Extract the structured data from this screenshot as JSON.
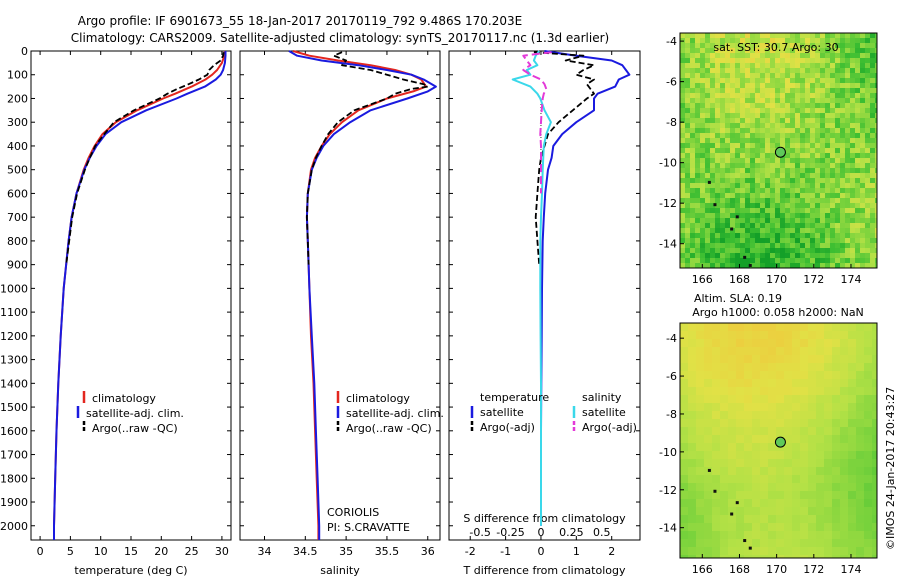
{
  "title": {
    "line1": "Argo profile: IF 6901673_55 18-Jan-2017 20170119_792 9.486S 170.203E",
    "line2": "Climatology: CARS2009. Satellite-adjusted climatology: synTS_20170117.nc (1.3d earlier)"
  },
  "colors": {
    "climatology": "#e3261f",
    "satellite": "#1a1adf",
    "argo": "#000000",
    "cyan": "#3ad8ea",
    "magenta": "#e33ad8",
    "circle": "#5fc95a"
  },
  "icons": {
    "map_marker": "circle-marker-icon"
  },
  "depth_ticks": [
    0,
    100,
    200,
    300,
    400,
    500,
    600,
    700,
    800,
    900,
    1000,
    1100,
    1200,
    1300,
    1400,
    1500,
    1600,
    1700,
    1800,
    1900,
    2000
  ],
  "chart_data": [
    {
      "type": "line",
      "panel": "temperature",
      "xlabel": "temperature (deg C)",
      "ylabel": "",
      "xlim": [
        -1.5,
        31.5
      ],
      "ylim": [
        2060,
        0
      ],
      "xticks": [
        0,
        5,
        10,
        15,
        20,
        25,
        30
      ],
      "legend": {
        "placement": "lower-left",
        "entries": [
          "climatology",
          "satellite-adj. clim.",
          "Argo(..raw -QC)"
        ]
      },
      "series": [
        {
          "name": "climatology",
          "color": "#e3261f",
          "depth": [
            0,
            20,
            50,
            80,
            100,
            120,
            150,
            180,
            200,
            250,
            300,
            350,
            400,
            450,
            500,
            600,
            700,
            800,
            1000,
            1200,
            1400,
            1600,
            1800,
            2000,
            2060
          ],
          "values": [
            30.5,
            30.4,
            30.0,
            29.2,
            28.4,
            27.3,
            25.0,
            22.3,
            20.3,
            16.0,
            12.5,
            10.3,
            9.0,
            8.0,
            7.2,
            6.0,
            5.2,
            4.7,
            3.9,
            3.4,
            3.0,
            2.7,
            2.5,
            2.3,
            2.3
          ]
        },
        {
          "name": "satellite-adj. clim.",
          "color": "#1a1adf",
          "depth": [
            0,
            20,
            50,
            80,
            100,
            120,
            150,
            180,
            200,
            250,
            300,
            350,
            400,
            450,
            500,
            600,
            700,
            800,
            1000,
            1200,
            1400,
            1600,
            1800,
            2000,
            2060
          ],
          "values": [
            30.6,
            30.6,
            30.5,
            30.2,
            29.8,
            29.0,
            27.2,
            24.3,
            22.5,
            17.5,
            13.4,
            10.8,
            9.3,
            8.2,
            7.3,
            6.0,
            5.2,
            4.7,
            3.9,
            3.4,
            3.0,
            2.7,
            2.5,
            2.3,
            2.3
          ]
        },
        {
          "name": "Argo(..raw -QC)",
          "color": "#000000",
          "depth": [
            5,
            20,
            40,
            60,
            80,
            100,
            120,
            140,
            160,
            180,
            200,
            250,
            300,
            350,
            400,
            450,
            500,
            600,
            700,
            800,
            900
          ],
          "values": [
            30.3,
            30.2,
            29.8,
            28.7,
            27.9,
            27.6,
            26.2,
            24.5,
            22.6,
            21.0,
            19.7,
            15.5,
            12.2,
            10.6,
            9.1,
            8.2,
            7.4,
            6.1,
            5.3,
            4.8,
            4.3
          ]
        }
      ]
    },
    {
      "type": "line",
      "panel": "salinity",
      "xlabel": "salinity",
      "ylabel": "",
      "xlim": [
        33.7,
        36.15
      ],
      "ylim": [
        2060,
        0
      ],
      "xticks": [
        34,
        34.5,
        35,
        35.5,
        36
      ],
      "legend": {
        "placement": "lower-right",
        "entries": [
          "climatology",
          "satellite-adj. clim.",
          "Argo(..raw -QC)"
        ]
      },
      "series": [
        {
          "name": "climatology",
          "color": "#e3261f",
          "depth": [
            0,
            20,
            40,
            60,
            80,
            100,
            120,
            150,
            170,
            200,
            250,
            300,
            350,
            400,
            450,
            500,
            600,
            700,
            800,
            1000,
            1200,
            1400,
            1600,
            1800,
            2000,
            2060
          ],
          "values": [
            34.35,
            34.55,
            34.9,
            35.3,
            35.6,
            35.8,
            35.92,
            35.98,
            35.82,
            35.5,
            35.15,
            34.95,
            34.8,
            34.7,
            34.62,
            34.57,
            34.53,
            34.52,
            34.53,
            34.55,
            34.57,
            34.6,
            34.62,
            34.64,
            34.66,
            34.66
          ]
        },
        {
          "name": "satellite-adj. clim.",
          "color": "#1a1adf",
          "depth": [
            0,
            20,
            40,
            60,
            80,
            100,
            120,
            150,
            170,
            200,
            250,
            300,
            350,
            400,
            450,
            500,
            600,
            700,
            800,
            1000,
            1200,
            1400,
            1600,
            1800,
            2000,
            2060
          ],
          "values": [
            34.3,
            34.4,
            34.7,
            35.15,
            35.5,
            35.8,
            35.95,
            36.1,
            36.0,
            35.75,
            35.3,
            35.05,
            34.85,
            34.72,
            34.64,
            34.58,
            34.53,
            34.52,
            34.53,
            34.55,
            34.58,
            34.61,
            34.63,
            34.65,
            34.67,
            34.67
          ]
        },
        {
          "name": "Argo(..raw -QC)",
          "color": "#000000",
          "depth": [
            5,
            20,
            40,
            60,
            80,
            100,
            120,
            140,
            150,
            160,
            180,
            200,
            250,
            300,
            350,
            400,
            450,
            500,
            600,
            700,
            800,
            900
          ],
          "values": [
            34.95,
            34.85,
            35.0,
            34.95,
            35.3,
            35.5,
            35.7,
            35.95,
            36.0,
            35.8,
            35.6,
            35.5,
            35.1,
            34.9,
            34.78,
            34.7,
            34.63,
            34.58,
            34.53,
            34.52,
            34.53,
            34.54
          ]
        }
      ]
    },
    {
      "type": "line",
      "panel": "difference",
      "xlabel": "T difference from climatology",
      "xlabel_top": "S difference from climatology",
      "xlim": [
        -2.6,
        2.8
      ],
      "ylim": [
        2060,
        0
      ],
      "xticks": [
        -2,
        -1,
        0,
        1,
        2
      ],
      "xticks_top": [
        -0.5,
        -0.25,
        0,
        0.25,
        0.5
      ],
      "legend": {
        "placement": "lower",
        "entries": [
          "temperature",
          "satellite",
          "Argo(-adj)",
          "salinity",
          "satellite",
          "Argo(-adj)"
        ]
      },
      "series": [
        {
          "name": "temperature satellite",
          "color": "#1a1adf",
          "depth": [
            0,
            20,
            40,
            60,
            80,
            100,
            120,
            150,
            180,
            200,
            250,
            300,
            350,
            400,
            450,
            500,
            600,
            700,
            800,
            1000,
            1200,
            1400,
            1600,
            1800,
            2000
          ],
          "values": [
            0.1,
            1.0,
            2.0,
            2.3,
            2.4,
            2.5,
            2.2,
            2.1,
            1.6,
            1.5,
            1.5,
            1.0,
            0.6,
            0.35,
            0.3,
            0.2,
            0.12,
            0.08,
            0.05,
            0.03,
            0.02,
            0.01,
            0.0,
            0.0,
            0.0
          ]
        },
        {
          "name": "temperature Argo(-adj)",
          "color": "#000000",
          "depth": [
            5,
            20,
            40,
            60,
            80,
            100,
            120,
            140,
            160,
            180,
            200,
            250,
            300,
            350,
            400,
            450,
            500,
            600,
            700,
            800,
            900
          ],
          "values": [
            -0.2,
            1.2,
            0.7,
            1.5,
            1.2,
            1.0,
            1.5,
            1.3,
            1.4,
            1.5,
            1.3,
            0.9,
            0.5,
            0.2,
            0.1,
            0.0,
            -0.05,
            -0.1,
            -0.15,
            -0.1,
            -0.05
          ]
        },
        {
          "name": "salinity satellite",
          "color": "#3ad8ea",
          "depth": [
            0,
            20,
            40,
            60,
            80,
            100,
            120,
            150,
            180,
            200,
            250,
            300,
            350,
            400,
            500,
            600,
            700,
            800,
            1000,
            1200,
            1400,
            1600,
            1800,
            2000
          ],
          "values": [
            -0.05,
            -0.15,
            -0.2,
            -0.1,
            -0.4,
            -0.3,
            -0.8,
            -0.3,
            -0.1,
            -0.02,
            0.1,
            0.28,
            0.15,
            0.08,
            0.05,
            0.03,
            0.0,
            -0.02,
            -0.02,
            -0.01,
            0.0,
            0.0,
            0.0,
            0.0
          ]
        },
        {
          "name": "salinity Argo(-adj)",
          "color": "#e33ad8",
          "depth": [
            5,
            20,
            40,
            60,
            80,
            100,
            120,
            140,
            160,
            180,
            200,
            250,
            300,
            350,
            400,
            450,
            500,
            600
          ],
          "values": [
            0.3,
            -0.5,
            -0.4,
            -0.3,
            -0.5,
            -0.3,
            0.0,
            0.1,
            0.15,
            0.08,
            0.05,
            0.02,
            0.0,
            -0.02,
            0.0,
            0.0,
            0.0,
            0.0
          ]
        }
      ]
    },
    {
      "type": "heatmap",
      "panel": "map-sst",
      "title": "sat. SST: 30.7 Argo: 30",
      "xlim": [
        164.8,
        175.4
      ],
      "ylim": [
        -15.2,
        -3.6
      ],
      "xticks": [
        166,
        168,
        170,
        172,
        174
      ],
      "yticks": [
        -4,
        -6,
        -8,
        -10,
        -12,
        -14
      ],
      "marker": {
        "lon": 170.203,
        "lat": -9.486
      }
    },
    {
      "type": "heatmap",
      "panel": "map-sla",
      "title": "Altim. SLA: 0.19",
      "subtitle": "Argo h1000: 0.058 h2000: NaN",
      "xlim": [
        164.8,
        175.4
      ],
      "ylim": [
        -15.6,
        -3.2
      ],
      "xticks": [
        166,
        168,
        170,
        172,
        174
      ],
      "yticks": [
        -4,
        -6,
        -8,
        -10,
        -12,
        -14
      ],
      "marker": {
        "lon": 170.203,
        "lat": -9.486
      }
    }
  ],
  "legend_labels": {
    "climatology": "climatology",
    "satellite_adj": "satellite-adj. clim.",
    "argo_raw": "Argo(..raw -QC)",
    "temperature": "temperature",
    "salinity": "salinity",
    "satellite": "satellite",
    "argo_adj": "Argo(-adj)"
  },
  "annotation": {
    "line1": "CORIOLIS",
    "line2": "PI: S.CRAVATTE"
  },
  "footer": "©IMOS 24-Jan-2017 20:43:27"
}
